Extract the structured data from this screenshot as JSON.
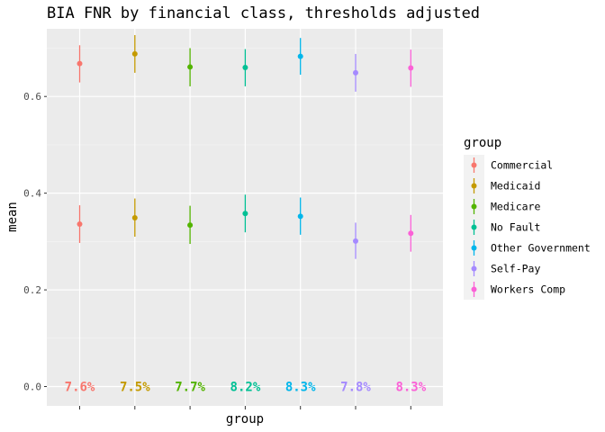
{
  "chart_data": {
    "type": "scatter",
    "title": "BIA FNR by financial class, thresholds adjusted",
    "xlabel": "group",
    "ylabel": "mean",
    "ylim": [
      -0.04,
      0.74
    ],
    "yticks": [
      0.0,
      0.2,
      0.4,
      0.6
    ],
    "ytick_labels": [
      "0.0",
      "0.2",
      "0.4",
      "0.6"
    ],
    "grid": true,
    "legend": {
      "title": "group",
      "position": "right"
    },
    "categories": [
      "Commercial",
      "Medicaid",
      "Medicare",
      "No Fault",
      "Other Government",
      "Self-Pay",
      "Workers Comp"
    ],
    "colors": [
      "#F8766D",
      "#C49A00",
      "#53B400",
      "#00C094",
      "#00B6EB",
      "#A58AFF",
      "#FB61D7"
    ],
    "upper": {
      "mean": [
        0.668,
        0.688,
        0.661,
        0.66,
        0.683,
        0.649,
        0.659
      ],
      "lower": [
        0.629,
        0.649,
        0.621,
        0.621,
        0.645,
        0.61,
        0.62
      ],
      "upper": [
        0.706,
        0.727,
        0.7,
        0.698,
        0.721,
        0.688,
        0.697
      ]
    },
    "lower": {
      "mean": [
        0.336,
        0.349,
        0.334,
        0.358,
        0.352,
        0.301,
        0.317
      ],
      "lower": [
        0.297,
        0.31,
        0.295,
        0.319,
        0.314,
        0.264,
        0.279
      ],
      "upper": [
        0.375,
        0.389,
        0.374,
        0.397,
        0.391,
        0.339,
        0.355
      ]
    },
    "annotations": {
      "y": 0.0,
      "labels": [
        "7.6%",
        "7.5%",
        "7.7%",
        "8.2%",
        "8.3%",
        "7.8%",
        "8.3%"
      ]
    }
  }
}
